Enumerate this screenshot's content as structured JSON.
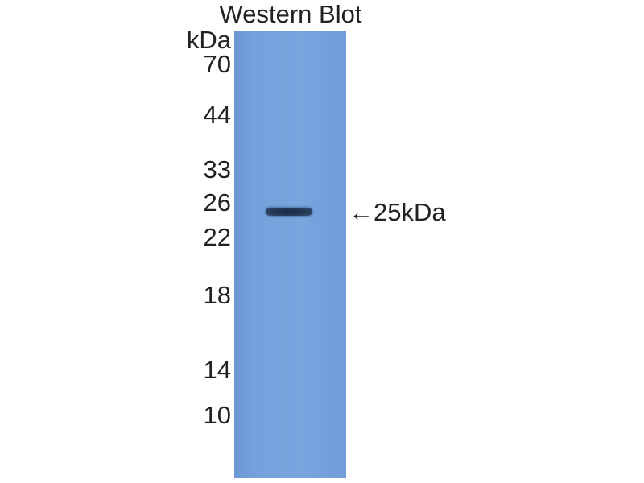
{
  "title": "Western Blot",
  "unit": "kDa",
  "markers": [
    "70",
    "44",
    "33",
    "26",
    "22",
    "18",
    "14",
    "10"
  ],
  "band_label": "25kDa",
  "colors": {
    "membrane": "#74a2dc",
    "band": "#22344f"
  }
}
